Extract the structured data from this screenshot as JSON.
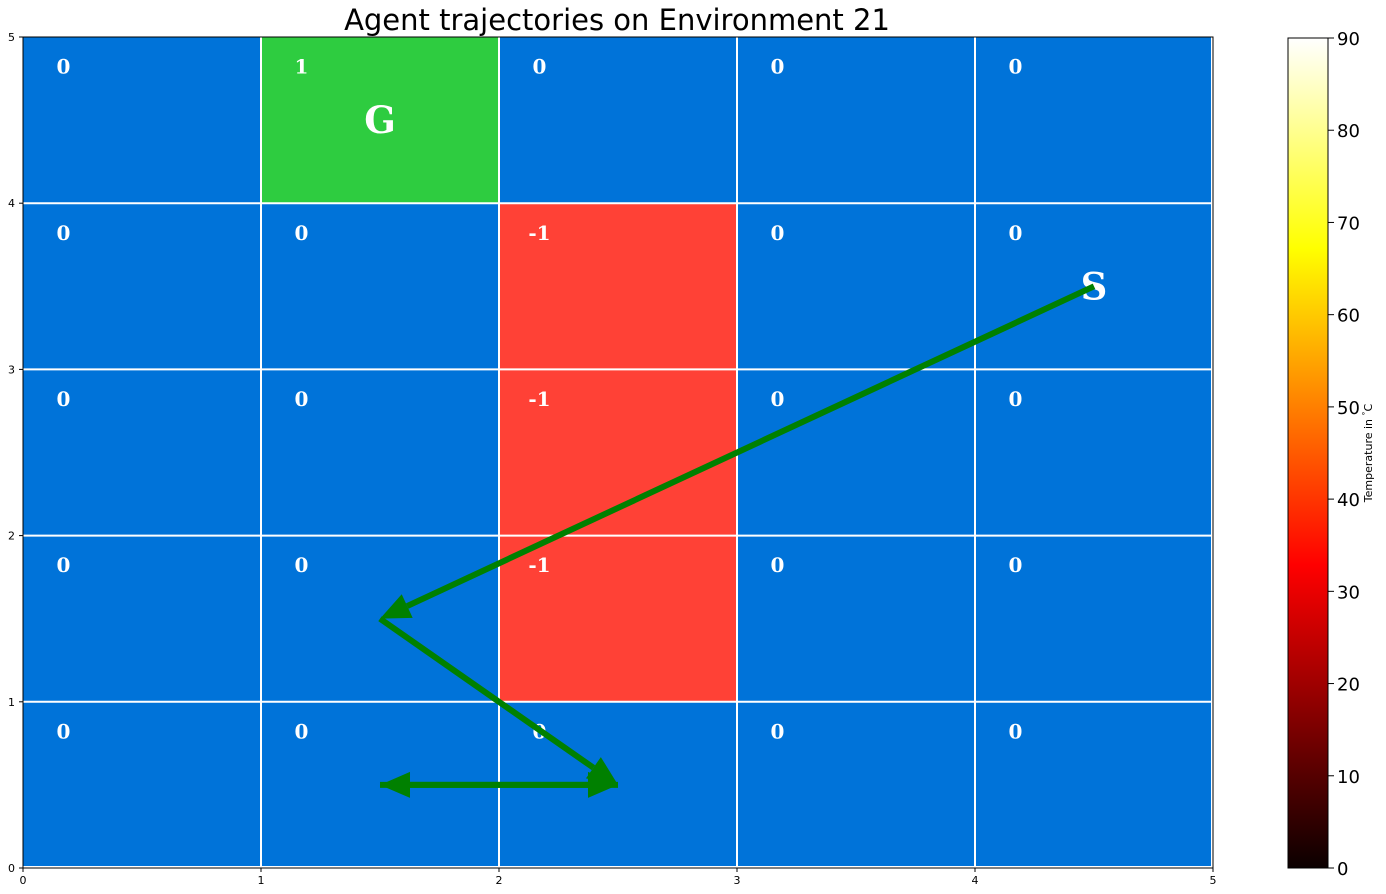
{
  "chart_data": {
    "type": "heatmap",
    "title": "Agent trajectories on Environment 21",
    "xlim": [
      0,
      5
    ],
    "ylim": [
      0,
      5
    ],
    "x_ticks": [
      "0",
      "1",
      "2",
      "3",
      "4",
      "5"
    ],
    "y_ticks": [
      "0",
      "1",
      "2",
      "3",
      "4",
      "5"
    ],
    "grid": true,
    "cells": [
      {
        "col": 0,
        "row": 4,
        "value": "0",
        "color": "#0073d9"
      },
      {
        "col": 1,
        "row": 4,
        "value": "1",
        "color": "#2ecc40",
        "marker": "G"
      },
      {
        "col": 2,
        "row": 4,
        "value": "0",
        "color": "#0073d9"
      },
      {
        "col": 3,
        "row": 4,
        "value": "0",
        "color": "#0073d9"
      },
      {
        "col": 4,
        "row": 4,
        "value": "0",
        "color": "#0073d9"
      },
      {
        "col": 0,
        "row": 3,
        "value": "0",
        "color": "#0073d9"
      },
      {
        "col": 1,
        "row": 3,
        "value": "0",
        "color": "#0073d9"
      },
      {
        "col": 2,
        "row": 3,
        "value": "-1",
        "color": "#ff4136"
      },
      {
        "col": 3,
        "row": 3,
        "value": "0",
        "color": "#0073d9"
      },
      {
        "col": 4,
        "row": 3,
        "value": "0",
        "color": "#0073d9",
        "marker": "S"
      },
      {
        "col": 0,
        "row": 2,
        "value": "0",
        "color": "#0073d9"
      },
      {
        "col": 1,
        "row": 2,
        "value": "0",
        "color": "#0073d9"
      },
      {
        "col": 2,
        "row": 2,
        "value": "-1",
        "color": "#ff4136"
      },
      {
        "col": 3,
        "row": 2,
        "value": "0",
        "color": "#0073d9"
      },
      {
        "col": 4,
        "row": 2,
        "value": "0",
        "color": "#0073d9"
      },
      {
        "col": 0,
        "row": 1,
        "value": "0",
        "color": "#0073d9"
      },
      {
        "col": 1,
        "row": 1,
        "value": "0",
        "color": "#0073d9"
      },
      {
        "col": 2,
        "row": 1,
        "value": "-1",
        "color": "#ff4136"
      },
      {
        "col": 3,
        "row": 1,
        "value": "0",
        "color": "#0073d9"
      },
      {
        "col": 4,
        "row": 1,
        "value": "0",
        "color": "#0073d9"
      },
      {
        "col": 0,
        "row": 0,
        "value": "0",
        "color": "#0073d9"
      },
      {
        "col": 1,
        "row": 0,
        "value": "0",
        "color": "#0073d9"
      },
      {
        "col": 2,
        "row": 0,
        "value": "0",
        "color": "#0073d9"
      },
      {
        "col": 3,
        "row": 0,
        "value": "0",
        "color": "#0073d9"
      },
      {
        "col": 4,
        "row": 0,
        "value": "0",
        "color": "#0073d9"
      }
    ],
    "trajectory": {
      "color": "#008000",
      "arrows": [
        {
          "from": [
            4.5,
            3.5
          ],
          "to": [
            1.5,
            1.5
          ]
        },
        {
          "from": [
            1.5,
            1.5
          ],
          "to": [
            2.5,
            0.5
          ]
        },
        {
          "from": [
            2.5,
            0.5
          ],
          "to": [
            1.5,
            0.5
          ]
        },
        {
          "from": [
            1.5,
            0.5
          ],
          "to": [
            2.5,
            0.5
          ]
        }
      ]
    },
    "colorbar": {
      "label": "Temperature in $^\\circ$C",
      "min": 0,
      "max": 90,
      "ticks": [
        "0",
        "10",
        "20",
        "30",
        "40",
        "50",
        "60",
        "70",
        "80",
        "90"
      ],
      "colormap": "hot"
    }
  }
}
